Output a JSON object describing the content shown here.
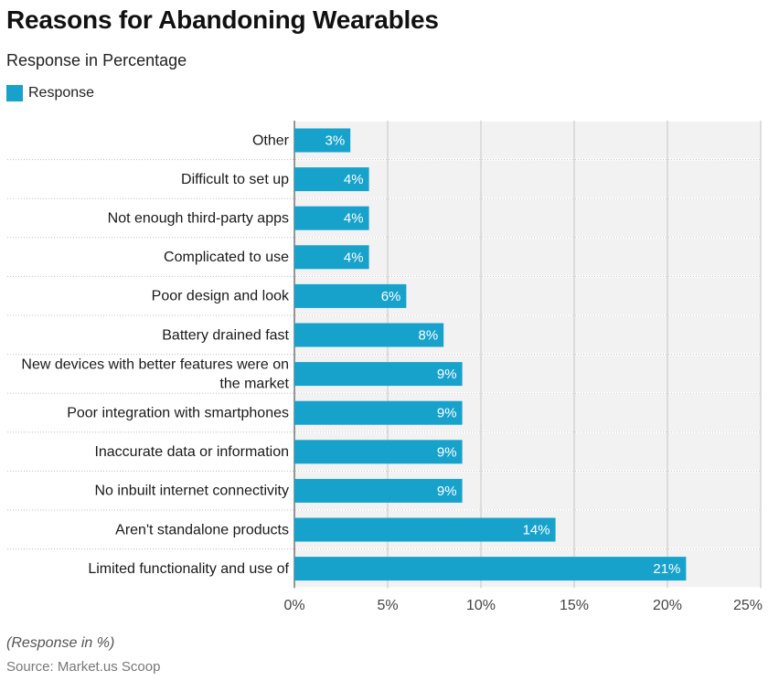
{
  "header": {
    "title": "Reasons for Abandoning Wearables",
    "subtitle": "Response in Percentage"
  },
  "legend": {
    "label": "Response",
    "color": "#17a2cc"
  },
  "footer": {
    "note": "(Response in %)",
    "source": "Source: Market.us Scoop"
  },
  "chart_data": {
    "type": "bar",
    "orientation": "horizontal",
    "categories": [
      "Other",
      "Difficult to set up",
      "Not enough third-party apps",
      "Complicated to use",
      "Poor design and look",
      "Battery drained fast",
      [
        "New devices with better features were on",
        "the market"
      ],
      "Poor integration with smartphones",
      "Inaccurate data or information",
      "No inbuilt internet connectivity",
      "Aren't standalone products",
      "Limited functionality and use of"
    ],
    "series": [
      {
        "name": "Response",
        "values": [
          3,
          4,
          4,
          4,
          6,
          8,
          9,
          9,
          9,
          9,
          14,
          21
        ]
      }
    ],
    "value_labels": [
      "3%",
      "4%",
      "4%",
      "4%",
      "6%",
      "8%",
      "9%",
      "9%",
      "9%",
      "9%",
      "14%",
      "21%"
    ],
    "x_ticks": [
      "0%",
      "5%",
      "10%",
      "15%",
      "20%",
      "25%"
    ],
    "xlim": [
      0,
      25
    ],
    "grid": true,
    "legend_position": "top-left",
    "bar_color": "#17a2cc",
    "band_color": "#f2f2f2"
  }
}
